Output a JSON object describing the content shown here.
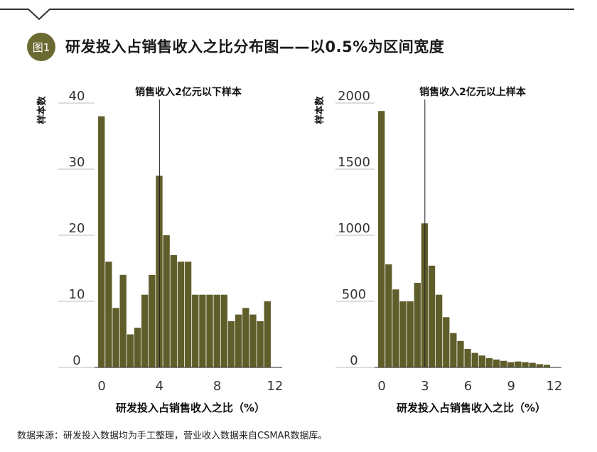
{
  "header": {
    "badge": "图1",
    "title": "研发投入占销售收入之比分布图——以0.5%为区间宽度"
  },
  "footer": {
    "source": "数据来源：研发投入数据均为手工整理，营业收入数据来自CSMAR数据库。"
  },
  "colors": {
    "bar": "#5f5e2b",
    "accent": "#6b6a33",
    "line": "#222222"
  },
  "chart_data": [
    {
      "type": "bar",
      "title": "销售收入2亿元以下样本",
      "ylabel": "样本数",
      "xlabel": "研发投入占销售收入之比（%）",
      "ylim": [
        0,
        40
      ],
      "yticks": [
        0,
        10,
        20,
        30,
        40
      ],
      "xlim": [
        -0.5,
        12.5
      ],
      "xticks": [
        0,
        4,
        8,
        12
      ],
      "bin_width": 0.5,
      "marker_line_x": 4,
      "bin_starts": [
        -0.25,
        0.25,
        0.75,
        1.25,
        1.75,
        2.25,
        2.75,
        3.25,
        3.75,
        4.25,
        4.75,
        5.25,
        5.75,
        6.25,
        6.75,
        7.25,
        7.75,
        8.25,
        8.75,
        9.25,
        9.75,
        10.25,
        10.75,
        11.25,
        11.75
      ],
      "values": [
        38,
        16,
        9,
        14,
        5,
        6,
        11,
        14,
        29,
        20,
        17,
        16,
        16,
        11,
        11,
        11,
        11,
        11,
        7,
        8,
        9,
        8,
        7,
        10,
        0
      ]
    },
    {
      "type": "bar",
      "title": "销售收入2亿元以上样本",
      "ylabel": "样本数",
      "xlabel": "研发投入占销售收入之比（%）",
      "ylim": [
        0,
        2000
      ],
      "yticks": [
        0,
        500,
        1000,
        1500,
        2000
      ],
      "xlim": [
        -0.5,
        12.5
      ],
      "xticks": [
        0,
        3,
        6,
        9,
        12
      ],
      "bin_width": 0.5,
      "marker_line_x": 3,
      "bin_starts": [
        -0.25,
        0.25,
        0.75,
        1.25,
        1.75,
        2.25,
        2.75,
        3.25,
        3.75,
        4.25,
        4.75,
        5.25,
        5.75,
        6.25,
        6.75,
        7.25,
        7.75,
        8.25,
        8.75,
        9.25,
        9.75,
        10.25,
        10.75,
        11.25,
        11.75
      ],
      "values": [
        1940,
        780,
        590,
        500,
        500,
        640,
        1090,
        770,
        550,
        380,
        260,
        200,
        140,
        110,
        90,
        70,
        60,
        50,
        40,
        45,
        40,
        35,
        25,
        20,
        0
      ]
    }
  ]
}
